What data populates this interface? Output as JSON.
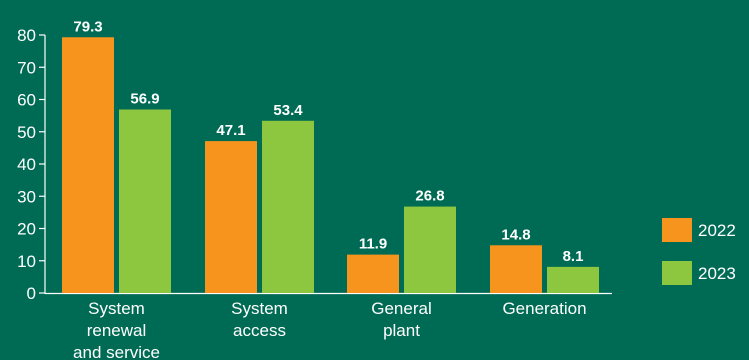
{
  "chart_data": {
    "type": "bar",
    "categories": [
      [
        "System",
        "renewal",
        "and service"
      ],
      [
        "System",
        "access"
      ],
      [
        "General",
        "plant"
      ],
      [
        "Generation"
      ]
    ],
    "series": [
      {
        "name": "2022",
        "color": "#F7941D",
        "values": [
          79.3,
          47.1,
          11.9,
          14.8
        ]
      },
      {
        "name": "2023",
        "color": "#8DC63F",
        "values": [
          56.9,
          53.4,
          26.8,
          8.1
        ]
      }
    ],
    "yticks": [
      0,
      10,
      20,
      30,
      40,
      50,
      60,
      70,
      80
    ],
    "ylim": [
      0,
      80
    ],
    "legend_position": "right",
    "grid": false,
    "title": "",
    "xlabel": "",
    "ylabel": ""
  }
}
